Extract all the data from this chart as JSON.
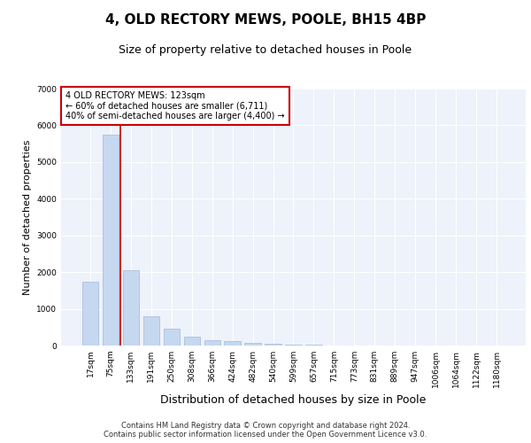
{
  "title1": "4, OLD RECTORY MEWS, POOLE, BH15 4BP",
  "title2": "Size of property relative to detached houses in Poole",
  "xlabel": "Distribution of detached houses by size in Poole",
  "ylabel": "Number of detached properties",
  "categories": [
    "17sqm",
    "75sqm",
    "133sqm",
    "191sqm",
    "250sqm",
    "308sqm",
    "366sqm",
    "424sqm",
    "482sqm",
    "540sqm",
    "599sqm",
    "657sqm",
    "715sqm",
    "773sqm",
    "831sqm",
    "889sqm",
    "947sqm",
    "1006sqm",
    "1064sqm",
    "1122sqm",
    "1180sqm"
  ],
  "values": [
    1750,
    5750,
    2050,
    800,
    450,
    230,
    150,
    120,
    80,
    50,
    30,
    15,
    5,
    0,
    0,
    0,
    0,
    0,
    0,
    0,
    0
  ],
  "bar_color": "#c5d8f0",
  "bar_edge_color": "#a0b8d8",
  "red_line_x": 1.5,
  "annotation_text": "4 OLD RECTORY MEWS: 123sqm\n← 60% of detached houses are smaller (6,711)\n40% of semi-detached houses are larger (4,400) →",
  "annotation_box_facecolor": "#ffffff",
  "annotation_box_edgecolor": "#cc0000",
  "footer1": "Contains HM Land Registry data © Crown copyright and database right 2024.",
  "footer2": "Contains public sector information licensed under the Open Government Licence v3.0.",
  "ylim": [
    0,
    7000
  ],
  "yticks": [
    0,
    1000,
    2000,
    3000,
    4000,
    5000,
    6000,
    7000
  ],
  "bg_color": "#eef2fa",
  "grid_color": "#ffffff",
  "title1_fontsize": 11,
  "title2_fontsize": 9,
  "ylabel_fontsize": 8,
  "xlabel_fontsize": 9,
  "tick_fontsize": 6.5,
  "annotation_fontsize": 7,
  "footer_fontsize": 6
}
